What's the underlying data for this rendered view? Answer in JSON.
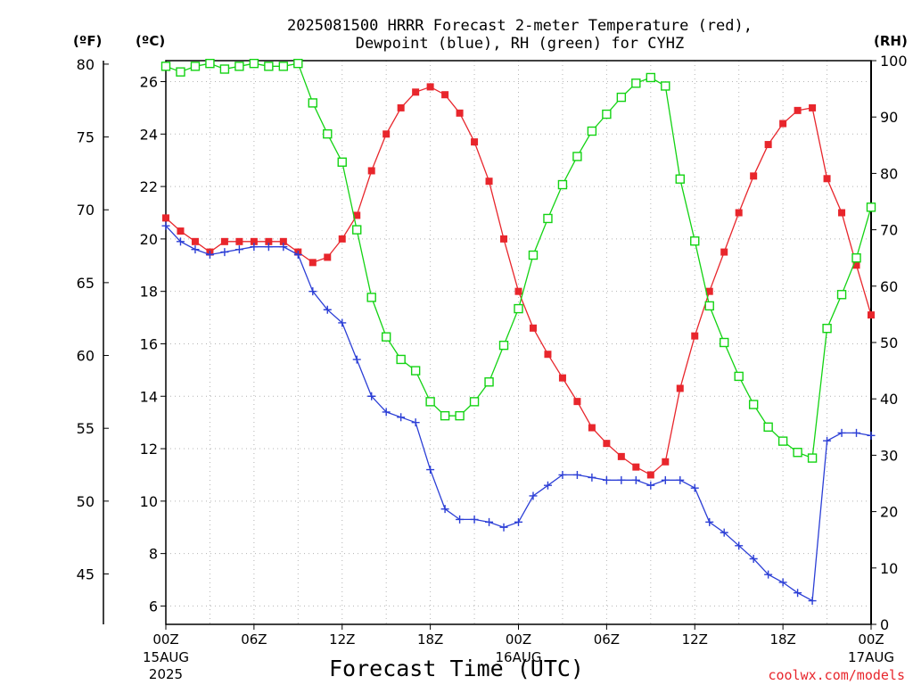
{
  "chart_data": {
    "type": "line",
    "title_lines": [
      "2025081500 HRRR Forecast 2-meter Temperature (red),",
      "Dewpoint (blue), RH (green) for CYHZ"
    ],
    "xlabel": "Forecast Time (UTC)",
    "credit": "coolwx.com/models",
    "y_left_f_label": "(ºF)",
    "y_left_c_label": "(ºC)",
    "y_right_label": "(RH)",
    "x_ticks": [
      {
        "h": 0,
        "label": "00Z",
        "sub": [
          "15AUG",
          "2025"
        ]
      },
      {
        "h": 6,
        "label": "06Z",
        "sub": []
      },
      {
        "h": 12,
        "label": "12Z",
        "sub": []
      },
      {
        "h": 18,
        "label": "18Z",
        "sub": []
      },
      {
        "h": 24,
        "label": "00Z",
        "sub": [
          "16AUG"
        ]
      },
      {
        "h": 30,
        "label": "06Z",
        "sub": []
      },
      {
        "h": 36,
        "label": "12Z",
        "sub": []
      },
      {
        "h": 42,
        "label": "18Z",
        "sub": []
      },
      {
        "h": 48,
        "label": "00Z",
        "sub": [
          "17AUG"
        ]
      }
    ],
    "xlim": [
      0,
      48
    ],
    "ylim_c": [
      5.3,
      26.8
    ],
    "y_ticks_c": [
      "6",
      "8",
      "10",
      "12",
      "14",
      "16",
      "18",
      "20",
      "22",
      "24",
      "26"
    ],
    "y_ticks_f": [
      "45",
      "50",
      "55",
      "60",
      "65",
      "70",
      "75",
      "80"
    ],
    "ylim_rh": [
      0,
      100
    ],
    "y_ticks_rh": [
      "0",
      "10",
      "20",
      "30",
      "40",
      "50",
      "60",
      "70",
      "80",
      "90",
      "100"
    ],
    "grid": true,
    "x": [
      0,
      1,
      2,
      3,
      4,
      5,
      6,
      7,
      8,
      9,
      10,
      11,
      12,
      13,
      14,
      15,
      16,
      17,
      18,
      19,
      20,
      21,
      22,
      23,
      24,
      25,
      26,
      27,
      28,
      29,
      30,
      31,
      32,
      33,
      34,
      35,
      36,
      37,
      38,
      39,
      40,
      41,
      42,
      43,
      44,
      45,
      46,
      47,
      48
    ],
    "series": [
      {
        "name": "Temperature",
        "axis": "c",
        "color": "#e8262c",
        "marker": "filled-square",
        "values": [
          20.8,
          20.3,
          19.9,
          19.5,
          19.9,
          19.9,
          19.9,
          19.9,
          19.9,
          19.5,
          19.1,
          19.3,
          20.0,
          20.9,
          22.6,
          24.0,
          25.0,
          25.6,
          25.8,
          25.5,
          24.8,
          23.7,
          22.2,
          20.0,
          18.0,
          16.6,
          15.6,
          14.7,
          13.8,
          12.8,
          12.2,
          11.7,
          11.3,
          11.0,
          11.5,
          14.3,
          16.3,
          18.0,
          19.5,
          21.0,
          22.4,
          23.6,
          24.4,
          24.9,
          25.0,
          22.3,
          21.0,
          19.0,
          17.1
        ]
      },
      {
        "name": "Dewpoint",
        "axis": "c",
        "color": "#2c3fd6",
        "marker": "plus",
        "values": [
          20.5,
          19.9,
          19.6,
          19.4,
          19.5,
          19.6,
          19.7,
          19.7,
          19.7,
          19.4,
          18.0,
          17.3,
          16.8,
          15.4,
          14.0,
          13.4,
          13.2,
          13.0,
          11.2,
          9.7,
          9.3,
          9.3,
          9.2,
          9.0,
          9.2,
          10.2,
          10.6,
          11.0,
          11.0,
          10.9,
          10.8,
          10.8,
          10.8,
          10.6,
          10.8,
          10.8,
          10.5,
          9.2,
          8.8,
          8.3,
          7.8,
          7.2,
          6.9,
          6.5,
          6.2,
          12.3,
          12.6,
          12.6,
          12.5
        ]
      },
      {
        "name": "RH",
        "axis": "rh",
        "color": "#13d313",
        "marker": "open-square",
        "values": [
          99,
          98,
          99,
          99.5,
          98.5,
          99,
          99.5,
          99,
          99,
          99.5,
          92.5,
          87,
          82,
          70,
          58,
          51,
          47,
          45,
          39.5,
          37,
          37,
          39.5,
          43,
          49.5,
          56,
          65.5,
          72,
          78,
          83,
          87.5,
          90.5,
          93.5,
          96,
          97,
          95.5,
          79,
          68,
          56.5,
          50,
          44,
          39,
          35,
          32.5,
          30.5,
          29.5,
          52.5,
          58.5,
          65,
          74
        ]
      }
    ]
  }
}
